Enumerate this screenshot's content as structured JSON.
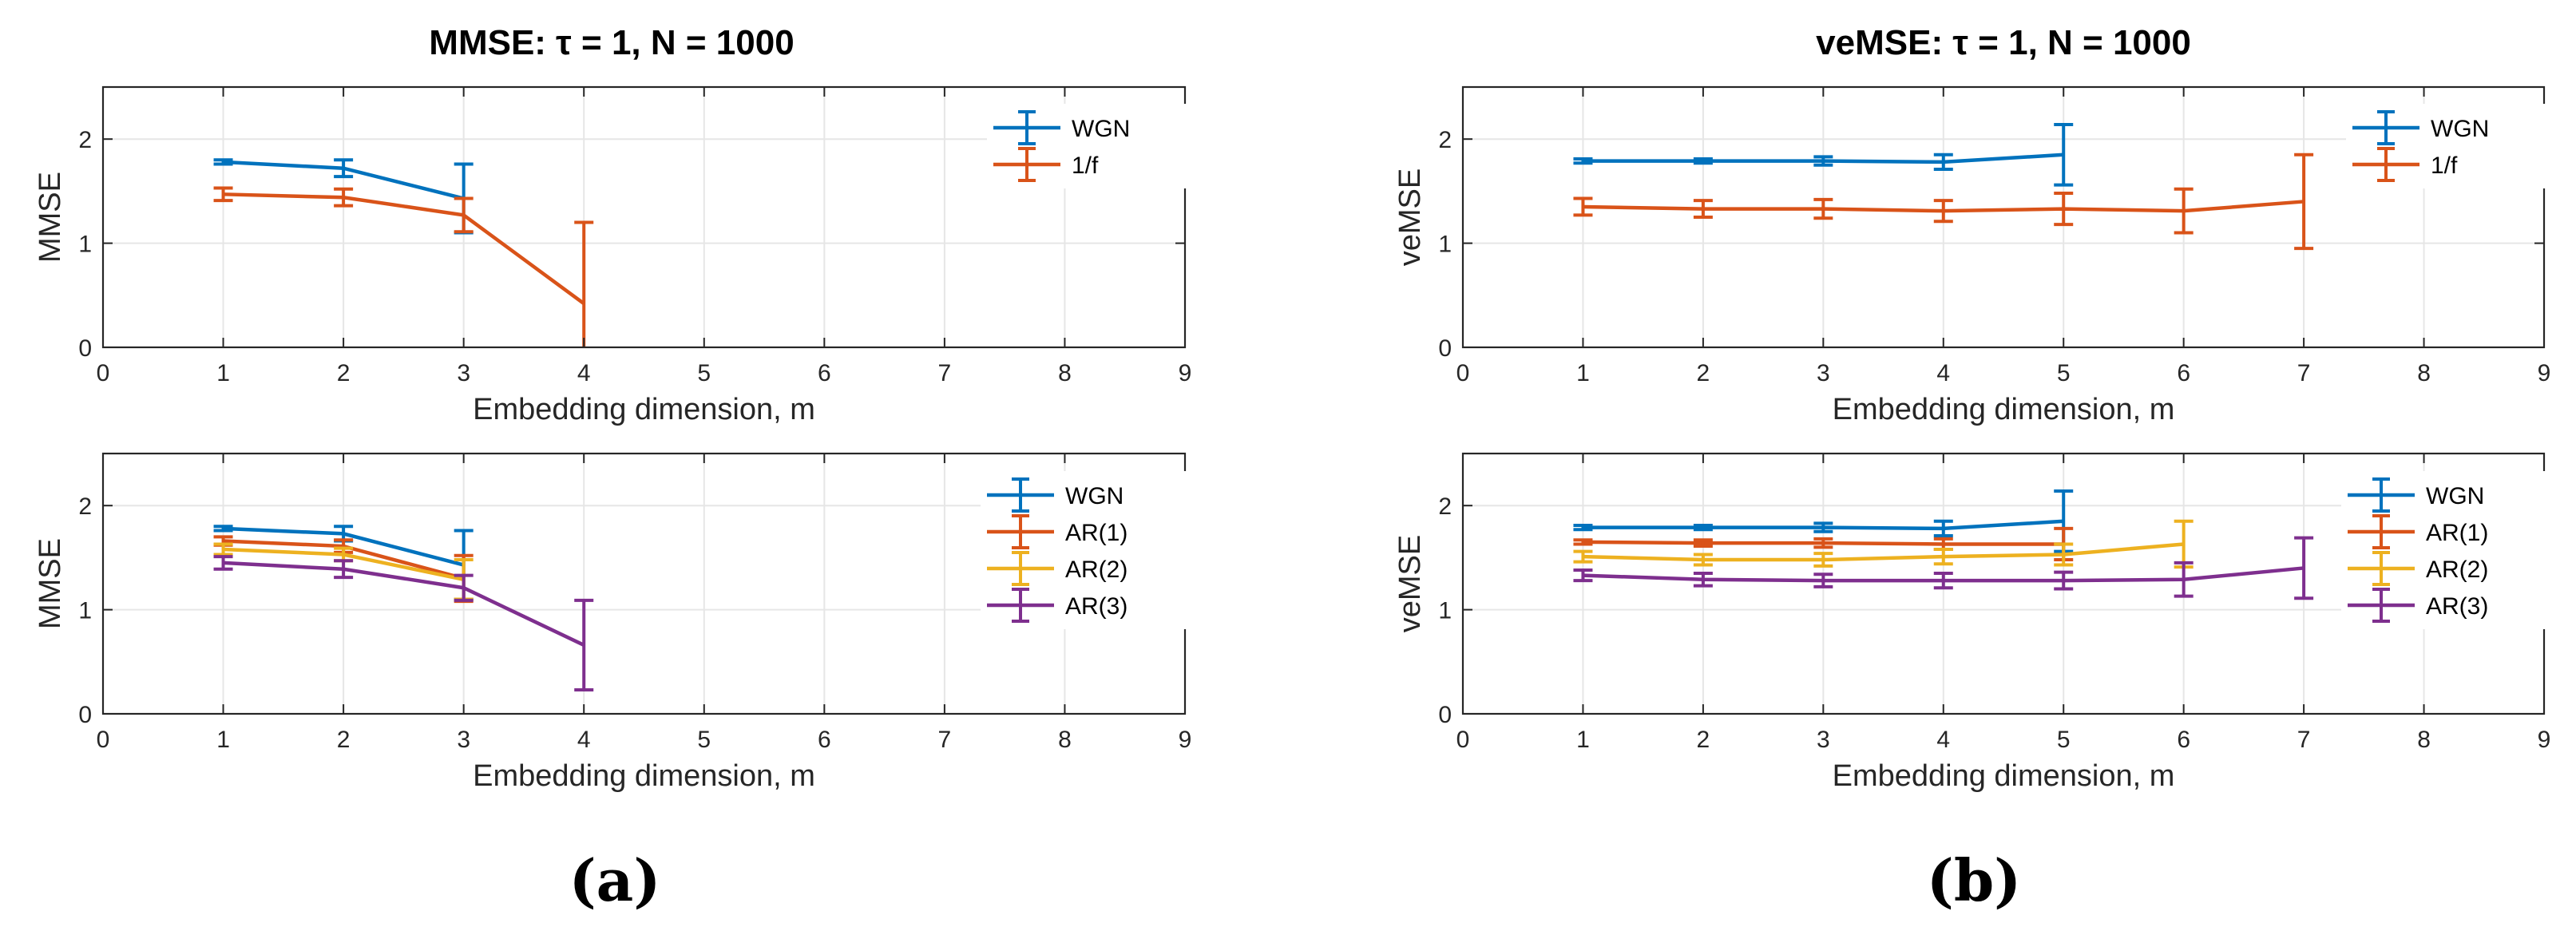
{
  "colors": {
    "WGN": "#0072BD",
    "1/f": "#D95319",
    "AR(1)": "#D95319",
    "AR(2)": "#EDB120",
    "AR(3)": "#7E2F8E",
    "grid": "#e6e6e6",
    "axis": "#262626"
  },
  "panel_labels": [
    "(a)",
    "(b)"
  ],
  "chart_data": [
    {
      "id": "a-top",
      "type": "line",
      "title": "MMSE: τ = 1, N = 1000",
      "xlabel": "Embedding dimension, m",
      "ylabel": "MMSE",
      "xlim": [
        0,
        9
      ],
      "ylim": [
        0,
        2.5
      ],
      "xticks": [
        "0",
        "1",
        "2",
        "3",
        "4",
        "5",
        "6",
        "7",
        "8",
        "9"
      ],
      "yticks": [
        "0",
        "1",
        "2"
      ],
      "grid": true,
      "legend_position": "top-right",
      "series": [
        {
          "name": "WGN",
          "x": [
            1,
            2,
            3
          ],
          "y": [
            1.78,
            1.72,
            1.43
          ],
          "err": [
            0.02,
            0.08,
            0.33
          ]
        },
        {
          "name": "1/f",
          "x": [
            1,
            2,
            3,
            4
          ],
          "y": [
            1.47,
            1.44,
            1.27,
            0.42
          ],
          "err": [
            0.06,
            0.08,
            0.16,
            0.78
          ]
        }
      ]
    },
    {
      "id": "a-bottom",
      "type": "line",
      "title": "",
      "xlabel": "Embedding dimension, m",
      "ylabel": "MMSE",
      "xlim": [
        0,
        9
      ],
      "ylim": [
        0,
        2.5
      ],
      "xticks": [
        "0",
        "1",
        "2",
        "3",
        "4",
        "5",
        "6",
        "7",
        "8",
        "9"
      ],
      "yticks": [
        "0",
        "1",
        "2"
      ],
      "grid": true,
      "legend_position": "top-right",
      "series": [
        {
          "name": "WGN",
          "x": [
            1,
            2,
            3
          ],
          "y": [
            1.78,
            1.73,
            1.43
          ],
          "err": [
            0.02,
            0.07,
            0.33
          ]
        },
        {
          "name": "AR(1)",
          "x": [
            1,
            2,
            3
          ],
          "y": [
            1.66,
            1.61,
            1.3
          ],
          "err": [
            0.04,
            0.06,
            0.22
          ]
        },
        {
          "name": "AR(2)",
          "x": [
            1,
            2,
            3
          ],
          "y": [
            1.58,
            1.53,
            1.29
          ],
          "err": [
            0.05,
            0.06,
            0.19
          ]
        },
        {
          "name": "AR(3)",
          "x": [
            1,
            2,
            3,
            4
          ],
          "y": [
            1.45,
            1.39,
            1.21,
            0.66
          ],
          "err": [
            0.06,
            0.08,
            0.12,
            0.43
          ]
        }
      ]
    },
    {
      "id": "b-top",
      "type": "line",
      "title": "veMSE: τ = 1, N = 1000",
      "xlabel": "Embedding dimension, m",
      "ylabel": "veMSE",
      "xlim": [
        0,
        9
      ],
      "ylim": [
        0,
        2.5
      ],
      "xticks": [
        "0",
        "1",
        "2",
        "3",
        "4",
        "5",
        "6",
        "7",
        "8",
        "9"
      ],
      "yticks": [
        "0",
        "1",
        "2"
      ],
      "grid": true,
      "legend_position": "top-right",
      "series": [
        {
          "name": "WGN",
          "x": [
            1,
            2,
            3,
            4,
            5
          ],
          "y": [
            1.79,
            1.79,
            1.79,
            1.78,
            1.85
          ],
          "err": [
            0.02,
            0.02,
            0.04,
            0.07,
            0.29
          ]
        },
        {
          "name": "1/f",
          "x": [
            1,
            2,
            3,
            4,
            5,
            6,
            7
          ],
          "y": [
            1.35,
            1.33,
            1.33,
            1.31,
            1.33,
            1.31,
            1.4
          ],
          "err": [
            0.08,
            0.08,
            0.09,
            0.1,
            0.15,
            0.21,
            0.45
          ]
        }
      ]
    },
    {
      "id": "b-bottom",
      "type": "line",
      "title": "",
      "xlabel": "Embedding dimension, m",
      "ylabel": "veMSE",
      "xlim": [
        0,
        9
      ],
      "ylim": [
        0,
        2.5
      ],
      "xticks": [
        "0",
        "1",
        "2",
        "3",
        "4",
        "5",
        "6",
        "7",
        "8",
        "9"
      ],
      "yticks": [
        "0",
        "1",
        "2"
      ],
      "grid": true,
      "legend_position": "top-right",
      "series": [
        {
          "name": "WGN",
          "x": [
            1,
            2,
            3,
            4,
            5
          ],
          "y": [
            1.79,
            1.79,
            1.79,
            1.78,
            1.85
          ],
          "err": [
            0.02,
            0.02,
            0.04,
            0.07,
            0.29
          ]
        },
        {
          "name": "AR(1)",
          "x": [
            1,
            2,
            3,
            4,
            5
          ],
          "y": [
            1.65,
            1.64,
            1.64,
            1.63,
            1.63
          ],
          "err": [
            0.02,
            0.03,
            0.04,
            0.05,
            0.15
          ]
        },
        {
          "name": "AR(2)",
          "x": [
            1,
            2,
            3,
            4,
            5,
            6
          ],
          "y": [
            1.51,
            1.48,
            1.48,
            1.51,
            1.53,
            1.63
          ],
          "err": [
            0.05,
            0.05,
            0.06,
            0.07,
            0.1,
            0.22
          ]
        },
        {
          "name": "AR(3)",
          "x": [
            1,
            2,
            3,
            4,
            5,
            6,
            7
          ],
          "y": [
            1.33,
            1.29,
            1.28,
            1.28,
            1.28,
            1.29,
            1.4
          ],
          "err": [
            0.05,
            0.06,
            0.06,
            0.07,
            0.08,
            0.16,
            0.29
          ]
        }
      ]
    }
  ]
}
